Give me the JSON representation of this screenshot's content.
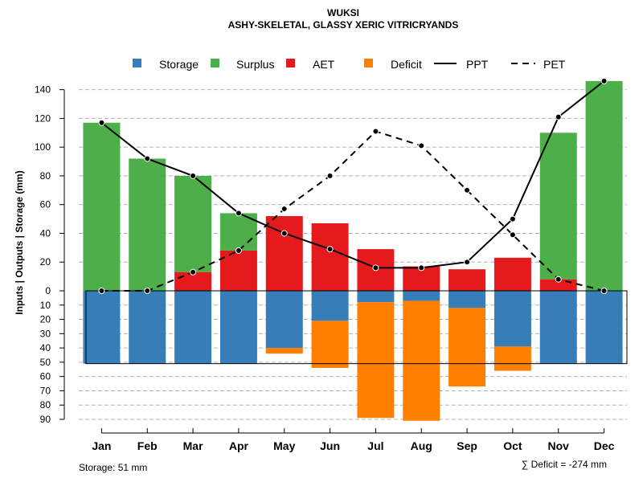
{
  "chart_data": {
    "type": "bar",
    "title": "WUKSI",
    "subtitle": "ASHY-SKELETAL, GLASSY XERIC VITRICRYANDS",
    "ylabel": "Inputs | Outputs | Storage    (mm)",
    "categories": [
      "Jan",
      "Feb",
      "Mar",
      "Apr",
      "May",
      "Jun",
      "Jul",
      "Aug",
      "Sep",
      "Oct",
      "Nov",
      "Dec"
    ],
    "upper_ticks": [
      "0",
      "20",
      "40",
      "60",
      "80",
      "100",
      "120",
      "140"
    ],
    "lower_ticks": [
      "10",
      "20",
      "30",
      "40",
      "50",
      "60",
      "70",
      "80",
      "90"
    ],
    "upper_ylim": [
      0,
      150
    ],
    "lower_ylim": [
      0,
      90
    ],
    "legend": [
      "Storage",
      "Surplus",
      "AET",
      "Deficit",
      "PPT",
      "PET"
    ],
    "colors": {
      "storage": "#377EB8",
      "surplus": "#4DAF4A",
      "aet": "#E41A1C",
      "deficit": "#FF7F00"
    },
    "series": [
      {
        "name": "AET",
        "values": [
          0,
          0,
          13,
          28,
          52,
          47,
          29,
          17,
          15,
          23,
          8,
          0
        ]
      },
      {
        "name": "Surplus",
        "values": [
          117,
          92,
          67,
          26,
          0,
          0,
          0,
          0,
          0,
          0,
          102,
          146
        ]
      },
      {
        "name": "Storage",
        "values": [
          51,
          51,
          51,
          51,
          40,
          21,
          8,
          7,
          12,
          39,
          51,
          51
        ]
      },
      {
        "name": "Deficit",
        "values": [
          0,
          0,
          0,
          0,
          4,
          33,
          81,
          84,
          55,
          17,
          0,
          0
        ]
      },
      {
        "name": "PPT",
        "values": [
          117,
          92,
          80,
          54,
          40,
          29,
          16,
          16,
          20,
          50,
          121,
          146
        ]
      },
      {
        "name": "PET",
        "values": [
          0,
          0,
          13,
          28,
          57,
          80,
          111,
          101,
          70,
          39,
          8,
          0
        ]
      }
    ],
    "storage_capacity": 51,
    "storage_label": "Storage: 51 mm",
    "deficit_label": "∑ Deficit = -274 mm"
  }
}
